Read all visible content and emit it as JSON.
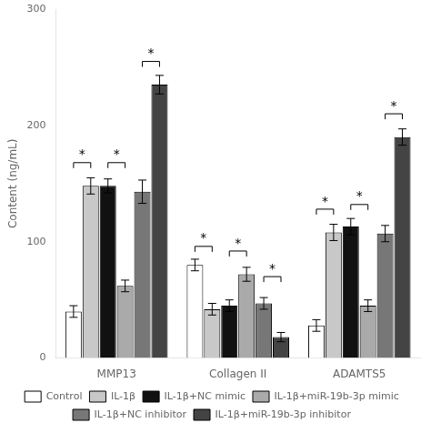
{
  "chart_data": {
    "type": "bar",
    "categories": [
      "MMP13",
      "Collagen II",
      "ADAMTS5"
    ],
    "series": [
      {
        "name": "Control",
        "color": "#ffffff",
        "values": [
          40,
          80,
          28
        ],
        "errors": [
          5,
          5,
          5
        ]
      },
      {
        "name": "IL-1β",
        "color": "#c8c8c8",
        "values": [
          148,
          42,
          108
        ],
        "errors": [
          7,
          5,
          7
        ]
      },
      {
        "name": "IL-1β+NC mimic",
        "color": "#111111",
        "values": [
          148,
          45,
          113
        ],
        "errors": [
          6,
          5,
          7
        ]
      },
      {
        "name": "IL-1β+miR-19b-3p mimic",
        "color": "#aaaaaa",
        "values": [
          62,
          72,
          45
        ],
        "errors": [
          5,
          6,
          5
        ]
      },
      {
        "name": "IL-1β+NC inhibitor",
        "color": "#777777",
        "values": [
          143,
          47,
          107
        ],
        "errors": [
          10,
          5,
          7
        ]
      },
      {
        "name": "IL-1β+miR-19b-3p inhibitor",
        "color": "#444444",
        "values": [
          235,
          18,
          190
        ],
        "errors": [
          8,
          4,
          7
        ]
      }
    ],
    "ylabel": "Content (ng/mL)",
    "ylim": [
      0,
      300
    ],
    "yticks": [
      0,
      100,
      200,
      300
    ],
    "grid": false,
    "legend": "bottom",
    "annotations": [
      {
        "category": "MMP13",
        "bars": [
          0,
          1
        ],
        "y": 168,
        "label": "*"
      },
      {
        "category": "MMP13",
        "bars": [
          2,
          3
        ],
        "y": 168,
        "label": "*"
      },
      {
        "category": "MMP13",
        "bars": [
          4,
          5
        ],
        "y": 255,
        "label": "*"
      },
      {
        "category": "Collagen II",
        "bars": [
          0,
          1
        ],
        "y": 96,
        "label": "*"
      },
      {
        "category": "Collagen II",
        "bars": [
          2,
          3
        ],
        "y": 92,
        "label": "*"
      },
      {
        "category": "Collagen II",
        "bars": [
          4,
          5
        ],
        "y": 70,
        "label": "*"
      },
      {
        "category": "ADAMTS5",
        "bars": [
          0,
          1
        ],
        "y": 128,
        "label": "*"
      },
      {
        "category": "ADAMTS5",
        "bars": [
          2,
          3
        ],
        "y": 132,
        "label": "*"
      },
      {
        "category": "ADAMTS5",
        "bars": [
          4,
          5
        ],
        "y": 210,
        "label": "*"
      }
    ]
  }
}
